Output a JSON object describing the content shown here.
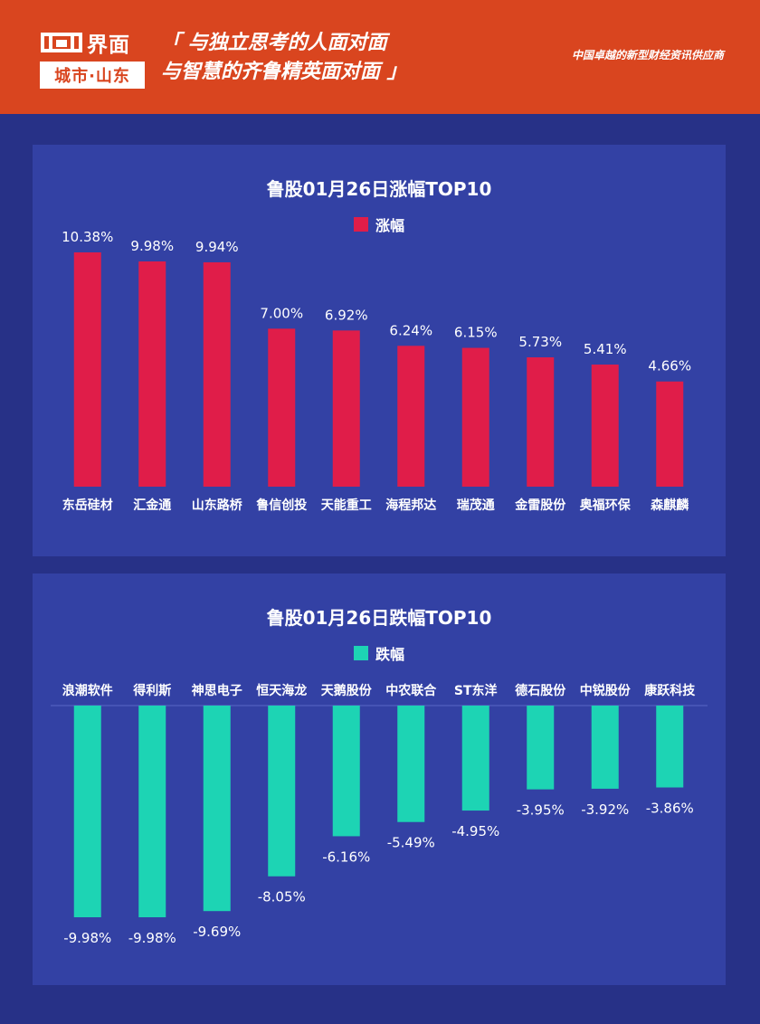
{
  "header": {
    "logo_name": "界面",
    "logo_sub": "城市·山东",
    "slogan_line1": "「 与独立思考的人面对面",
    "slogan_line2": "与智慧的齐鲁精英面对面 」",
    "tagline": "中国卓越的新型财经资讯供应商"
  },
  "colors": {
    "background": "#273187",
    "panel": "#3341a4",
    "header": "#d9451f",
    "gain": "#e01d49",
    "loss": "#1dd4b4"
  },
  "chart_data": [
    {
      "type": "bar",
      "title": "鲁股01月26日涨幅TOP10",
      "legend": "涨幅",
      "legend_position": "top-center",
      "grid": false,
      "ylim": [
        0,
        11
      ],
      "categories": [
        "东岳硅材",
        "汇金通",
        "山东路桥",
        "鲁信创投",
        "天能重工",
        "海程邦达",
        "瑞茂通",
        "金雷股份",
        "奥福环保",
        "森麒麟"
      ],
      "values": [
        10.38,
        9.98,
        9.94,
        7.0,
        6.92,
        6.24,
        6.15,
        5.73,
        5.41,
        4.66
      ],
      "labels": [
        "10.38%",
        "9.98%",
        "9.94%",
        "7.00%",
        "6.92%",
        "6.24%",
        "6.15%",
        "5.73%",
        "5.41%",
        "4.66%"
      ],
      "color": "#e01d49"
    },
    {
      "type": "bar",
      "title": "鲁股01月26日跌幅TOP10",
      "legend": "跌幅",
      "legend_position": "top-center",
      "grid": false,
      "ylim": [
        -11,
        0
      ],
      "categories": [
        "浪潮软件",
        "得利斯",
        "神思电子",
        "恒天海龙",
        "天鹅股份",
        "中农联合",
        "ST东洋",
        "德石股份",
        "中锐股份",
        "康跃科技"
      ],
      "values": [
        -9.98,
        -9.98,
        -9.69,
        -8.05,
        -6.16,
        -5.49,
        -4.95,
        -3.95,
        -3.92,
        -3.86
      ],
      "labels": [
        "-9.98%",
        "-9.98%",
        "-9.69%",
        "-8.05%",
        "-6.16%",
        "-5.49%",
        "-4.95%",
        "-3.95%",
        "-3.92%",
        "-3.86%"
      ],
      "color": "#1dd4b4"
    }
  ]
}
